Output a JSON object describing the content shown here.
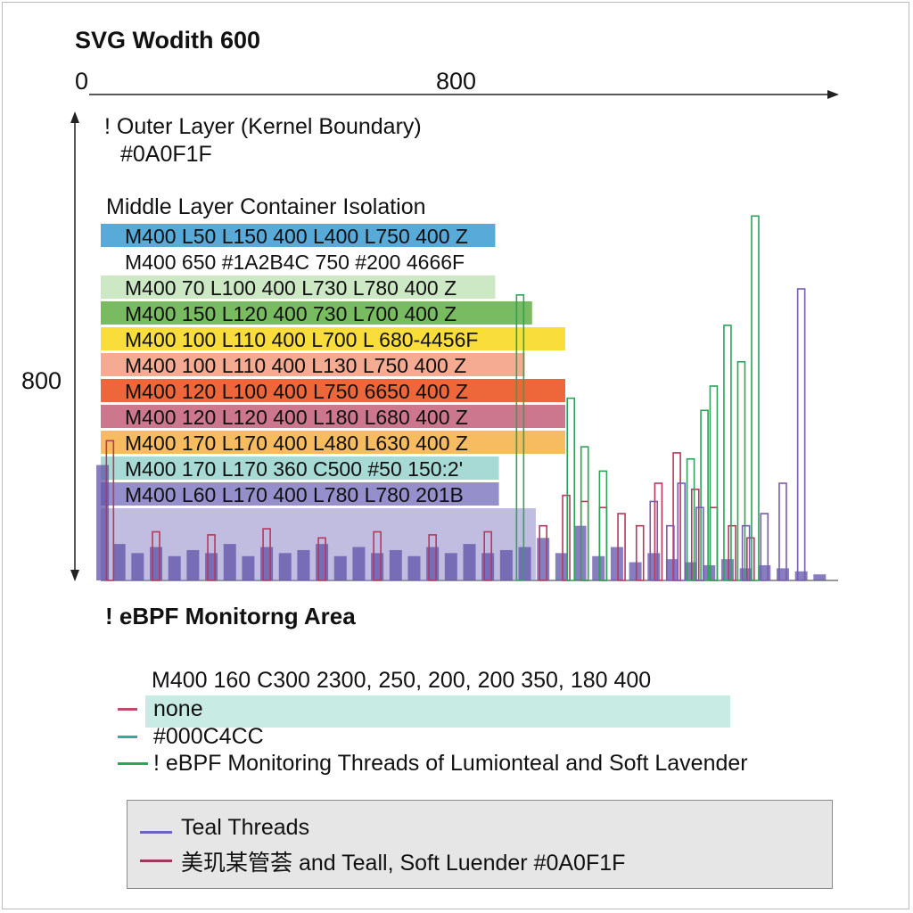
{
  "title": "SVG Wodith 600",
  "x_axis": {
    "start_label": "0",
    "end_label": "800"
  },
  "y_axis": {
    "label": "800"
  },
  "annotations": {
    "outer_layer": "! Outer Layer (Kernel Boundary)",
    "outer_color": "#0A0F1F",
    "middle_layer": "Middle Layer Container Isolation"
  },
  "layers": [
    {
      "text": "M400 L50 L150 400 L400 L750 400 Z",
      "color": "#4aa3d6",
      "extent": 0.535
    },
    {
      "text": "M400 650 #1A2B4C  750 #200 4666F",
      "color": "#ffffff",
      "extent": 0.0
    },
    {
      "text": "M400  70  L100 400 L730 L780 400 Z",
      "color": "#c8e6c0",
      "extent": 0.535
    },
    {
      "text": "M400 150 L120 400  730 L700 400 Z",
      "color": "#6db552",
      "extent": 0.585
    },
    {
      "text": "M400 100 L110 400 L700 L 680-4456F",
      "color": "#f9db2a",
      "extent": 0.63
    },
    {
      "text": "M400 100 L110 400 L130 L750 400 Z",
      "color": "#f4a488",
      "extent": 0.575
    },
    {
      "text": "M400 120 L100 400 L750 6650 400 Z",
      "color": "#ec5a2a",
      "extent": 0.63
    },
    {
      "text": "M400 120 L120 400 L180 L680 400 Z",
      "color": "#c96b84",
      "extent": 0.63
    },
    {
      "text": "M400 170 L170 400 L480 L630 400 Z",
      "color": "#f6b653",
      "extent": 0.63
    },
    {
      "text": "M400 170 L170 360 C500  #50 150:2'",
      "color": "#9fd7d0",
      "extent": 0.54
    },
    {
      "text": "M400 L60 L170 400 L780 L780 201B",
      "color": "#8c86c7",
      "extent": 0.54
    }
  ],
  "section_title": "! eBPF Monitorng Area",
  "path_text": "M400 160 C300 2300, 250, 200, 200 350, 180 400",
  "key_items": [
    {
      "text": "none",
      "color": "#c04a68"
    },
    {
      "text": "#000C4CC",
      "color": "#3aa99a"
    },
    {
      "text": "! eBPF Monitoring Threads of Lumionteal and Soft Lavender",
      "color": "#2ea35a"
    }
  ],
  "teal_band_color": "#c8ebe3",
  "legend": [
    {
      "text": "Teal Threads",
      "color": "#6a64c4"
    },
    {
      "text": "美玑某管荟   and Teall, Soft Luender #0A0F1F",
      "color": "#a0375c"
    }
  ],
  "chart_data": {
    "type": "bar",
    "title": "SVG Wodith 600",
    "xlabel": "",
    "ylabel": "",
    "xlim": [
      0,
      800
    ],
    "ylim": [
      0,
      800
    ],
    "series": [
      {
        "color": "#5e53a8",
        "x": [
          2,
          20,
          40,
          60,
          80,
          100,
          120,
          140,
          160,
          180,
          200,
          220,
          240,
          260,
          280,
          300,
          320,
          340,
          360,
          380,
          400,
          420,
          440,
          460,
          480,
          500,
          520,
          540,
          560,
          580,
          600,
          620,
          640,
          660,
          680,
          700,
          720,
          740,
          760,
          780
        ],
        "values": [
          190,
          60,
          45,
          55,
          40,
          50,
          45,
          60,
          40,
          55,
          45,
          50,
          60,
          40,
          55,
          45,
          50,
          40,
          55,
          45,
          60,
          45,
          50,
          55,
          70,
          45,
          90,
          40,
          55,
          30,
          45,
          35,
          30,
          25,
          35,
          20,
          25,
          20,
          15,
          10
        ]
      },
      {
        "color": "#b7385a",
        "x": [
          10,
          60,
          120,
          180,
          240,
          300,
          360,
          420,
          480,
          505,
          525,
          545,
          565,
          585,
          605,
          625,
          645,
          665,
          685,
          705
        ],
        "values": [
          230,
          80,
          75,
          85,
          70,
          80,
          75,
          80,
          90,
          140,
          130,
          120,
          110,
          90,
          160,
          210,
          150,
          120,
          90,
          70
        ]
      },
      {
        "color": "#2ea35a",
        "x": [
          455,
          510,
          525,
          545,
          640,
          655,
          665,
          680,
          695,
          710
        ],
        "values": [
          470,
          300,
          220,
          180,
          200,
          280,
          320,
          420,
          360,
          600
        ]
      },
      {
        "color": "#7a5bb0",
        "x": [
          600,
          618,
          630,
          650,
          700,
          720,
          740,
          760
        ],
        "values": [
          130,
          90,
          160,
          120,
          90,
          110,
          160,
          480
        ]
      }
    ]
  }
}
